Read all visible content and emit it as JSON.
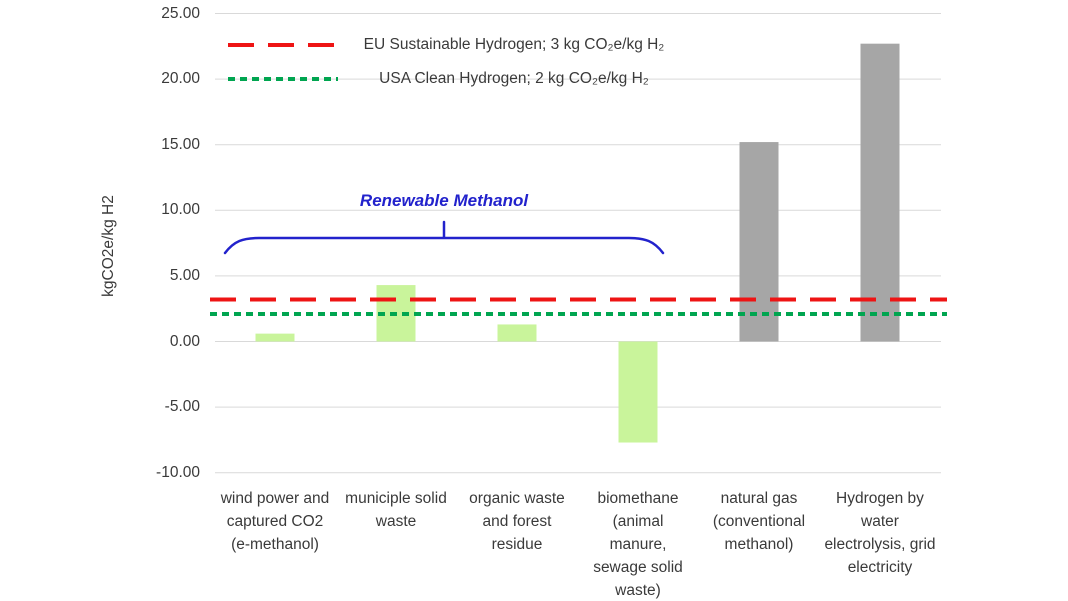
{
  "chart_data": {
    "type": "bar",
    "title": "",
    "ylabel": "kgCO2e/kg H2",
    "xlabel": "",
    "ylim": [
      -10,
      25
    ],
    "grid": true,
    "legend_position": "top-left-inside",
    "ytick_values": [
      25,
      20,
      15,
      10,
      5,
      0,
      -5,
      -10
    ],
    "ytick_labels": [
      "25.00",
      "20.00",
      "15.00",
      "10.00",
      "5.00",
      "0.00",
      "-5.00",
      "-10.00"
    ],
    "categories": [
      "wind power and\ncaptured CO2\n(e-methanol)",
      "municiple solid\nwaste",
      "organic waste\nand forest\nresidue",
      "biomethane\n(animal\nmanure,\nsewage solid\nwaste)",
      "natural gas\n(conventional\nmethanol)",
      "Hydrogen by\nwater\nelectrolysis, grid\nelectricity"
    ],
    "values": [
      0.6,
      4.3,
      1.3,
      -7.7,
      15.2,
      22.7
    ],
    "bar_colors": [
      "#C9F49B",
      "#C9F49B",
      "#C9F49B",
      "#C9F49B",
      "#A6A6A6",
      "#A6A6A6"
    ],
    "thresholds": [
      {
        "label": "EU Sustainable Hydrogen; 3 kg CO₂e/kg H₂",
        "value": 3,
        "draw_value": 3.2,
        "color": "#EE1414",
        "style": "dashed"
      },
      {
        "label": "USA Clean Hydrogen; 2 kg CO₂e/kg H₂",
        "value": 2,
        "draw_value": 2.1,
        "color": "#00A550",
        "style": "dotted"
      }
    ],
    "annotation": {
      "label": "Renewable Methanol",
      "color": "#2222CC",
      "from_category": 0,
      "to_category": 3
    },
    "colors": {
      "bar_green": "#C9F49B",
      "bar_gray": "#A6A6A6",
      "gridline": "#D9D9D9",
      "axis_text": "#3A3A3A",
      "annotation_blue": "#2222CC",
      "threshold_red": "#EE1414",
      "threshold_green": "#00A550"
    }
  }
}
